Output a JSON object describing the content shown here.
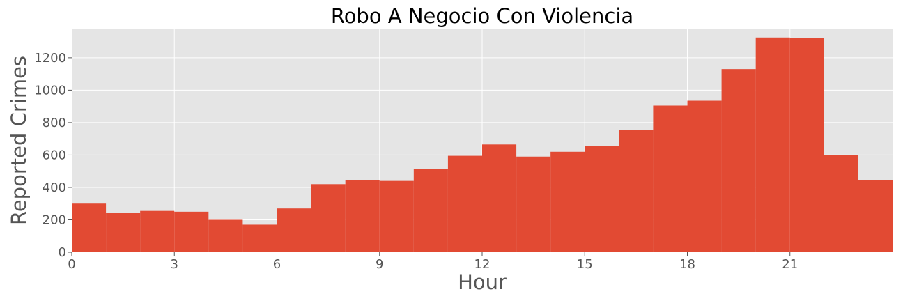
{
  "chart_data": {
    "type": "bar",
    "title": "Robo A Negocio Con Violencia",
    "xlabel": "Hour",
    "ylabel": "Reported Crimes",
    "bin_start": [
      0,
      1,
      2,
      3,
      4,
      5,
      6,
      7,
      8,
      9,
      10,
      11,
      12,
      13,
      14,
      15,
      16,
      17,
      18,
      19,
      20,
      21,
      22,
      23
    ],
    "values": [
      300,
      245,
      255,
      250,
      200,
      170,
      270,
      420,
      445,
      440,
      515,
      595,
      665,
      590,
      620,
      655,
      755,
      905,
      935,
      1130,
      1325,
      1320,
      600,
      445
    ],
    "xlim": [
      0,
      24
    ],
    "ylim": [
      0,
      1380
    ],
    "xticks": [
      0,
      3,
      6,
      9,
      12,
      15,
      18,
      21
    ],
    "yticks": [
      0,
      200,
      400,
      600,
      800,
      1000,
      1200
    ],
    "grid": true,
    "colors": {
      "bar": "#e24a33",
      "background": "#e5e5e5",
      "grid": "#ffffff"
    }
  }
}
